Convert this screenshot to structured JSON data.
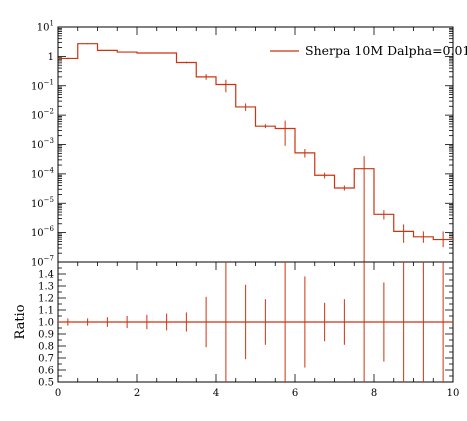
{
  "chart_data": [
    {
      "type": "line",
      "panel": "main",
      "drawstyle": "steps",
      "yscale": "log",
      "xlim": [
        0,
        10
      ],
      "ylim": [
        1e-07,
        10
      ],
      "ytick_labels": [
        {
          "base": "10",
          "exp": "1",
          "value": 10
        },
        {
          "base": "1",
          "exp": "",
          "value": 1
        },
        {
          "base": "10",
          "exp": "−1",
          "value": 0.1
        },
        {
          "base": "10",
          "exp": "−2",
          "value": 0.01
        },
        {
          "base": "10",
          "exp": "−3",
          "value": 0.001
        },
        {
          "base": "10",
          "exp": "−4",
          "value": 0.0001
        },
        {
          "base": "10",
          "exp": "−5",
          "value": 1e-05
        },
        {
          "base": "10",
          "exp": "−6",
          "value": 1e-06
        },
        {
          "base": "10",
          "exp": "−7",
          "value": 1e-07
        }
      ],
      "legend_position": "top-right",
      "series": [
        {
          "name": "Sherpa 10M Dalpha=0.01",
          "color": "#cc3311",
          "bin_edges": [
            0,
            0.5,
            1,
            1.5,
            2,
            2.5,
            3,
            3.5,
            4,
            4.5,
            5,
            5.5,
            6,
            6.5,
            7,
            7.5,
            8,
            8.5,
            9,
            9.5,
            10
          ],
          "values": [
            0.85,
            2.7,
            1.6,
            1.4,
            1.3,
            1.3,
            0.62,
            0.2,
            0.11,
            0.019,
            0.0042,
            0.0035,
            0.00052,
            9e-05,
            3.3e-05,
            0.00015,
            4.2e-06,
            1.1e-06,
            7.2e-07,
            5.8e-07
          ],
          "err_low": [
            0.8,
            2.6,
            1.55,
            1.35,
            1.25,
            1.25,
            0.58,
            0.16,
            0.06,
            0.014,
            0.0036,
            0.0009,
            0.00036,
            7e-05,
            2.7e-05,
            1e-07,
            2.8e-06,
            4.5e-07,
            4.5e-07,
            3.2e-07
          ],
          "err_high": [
            0.9,
            2.8,
            1.65,
            1.45,
            1.35,
            1.35,
            0.66,
            0.25,
            0.16,
            0.025,
            0.0049,
            0.0065,
            0.0007,
            0.00011,
            4e-05,
            0.0004,
            5.8e-06,
            1.9e-06,
            1.1e-06,
            1.1e-06
          ]
        }
      ]
    },
    {
      "type": "line",
      "panel": "ratio",
      "drawstyle": "steps",
      "xlim": [
        0,
        10
      ],
      "ylim": [
        0.5,
        1.5
      ],
      "ylabel": "Ratio",
      "x_ticks": [
        0,
        2,
        4,
        6,
        8,
        10
      ],
      "x_tick_labels": [
        "0",
        "2",
        "4",
        "6",
        "8",
        "10"
      ],
      "y_ticks": [
        0.5,
        0.6,
        0.7,
        0.8,
        0.9,
        1.0,
        1.1,
        1.2,
        1.3,
        1.4
      ],
      "y_tick_labels": [
        "0.5",
        "0.6",
        "0.7",
        "0.8",
        "0.9",
        "1.0",
        "1.1",
        "1.2",
        "1.3",
        "1.4"
      ],
      "series": [
        {
          "name": "Sherpa 10M Dalpha=0.01",
          "color": "#cc3311",
          "bin_edges": [
            0,
            0.5,
            1,
            1.5,
            2,
            2.5,
            3,
            3.5,
            4,
            4.5,
            5,
            5.5,
            6,
            6.5,
            7,
            7.5,
            8,
            8.5,
            9,
            9.5,
            10
          ],
          "values": [
            1,
            1,
            1,
            1,
            1,
            1,
            1,
            1,
            1,
            1,
            1,
            1,
            1,
            1,
            1,
            1,
            1,
            1,
            1,
            1
          ],
          "err_low": [
            0.97,
            0.97,
            0.96,
            0.95,
            0.94,
            0.93,
            0.92,
            0.79,
            0.5,
            0.69,
            0.81,
            0.5,
            0.62,
            0.84,
            0.81,
            0.5,
            0.67,
            0.5,
            0.5,
            0.5
          ],
          "err_high": [
            1.03,
            1.03,
            1.04,
            1.05,
            1.06,
            1.07,
            1.08,
            1.21,
            1.5,
            1.31,
            1.19,
            1.5,
            1.38,
            1.16,
            1.19,
            1.5,
            1.33,
            1.5,
            1.5,
            1.5
          ]
        }
      ]
    }
  ]
}
